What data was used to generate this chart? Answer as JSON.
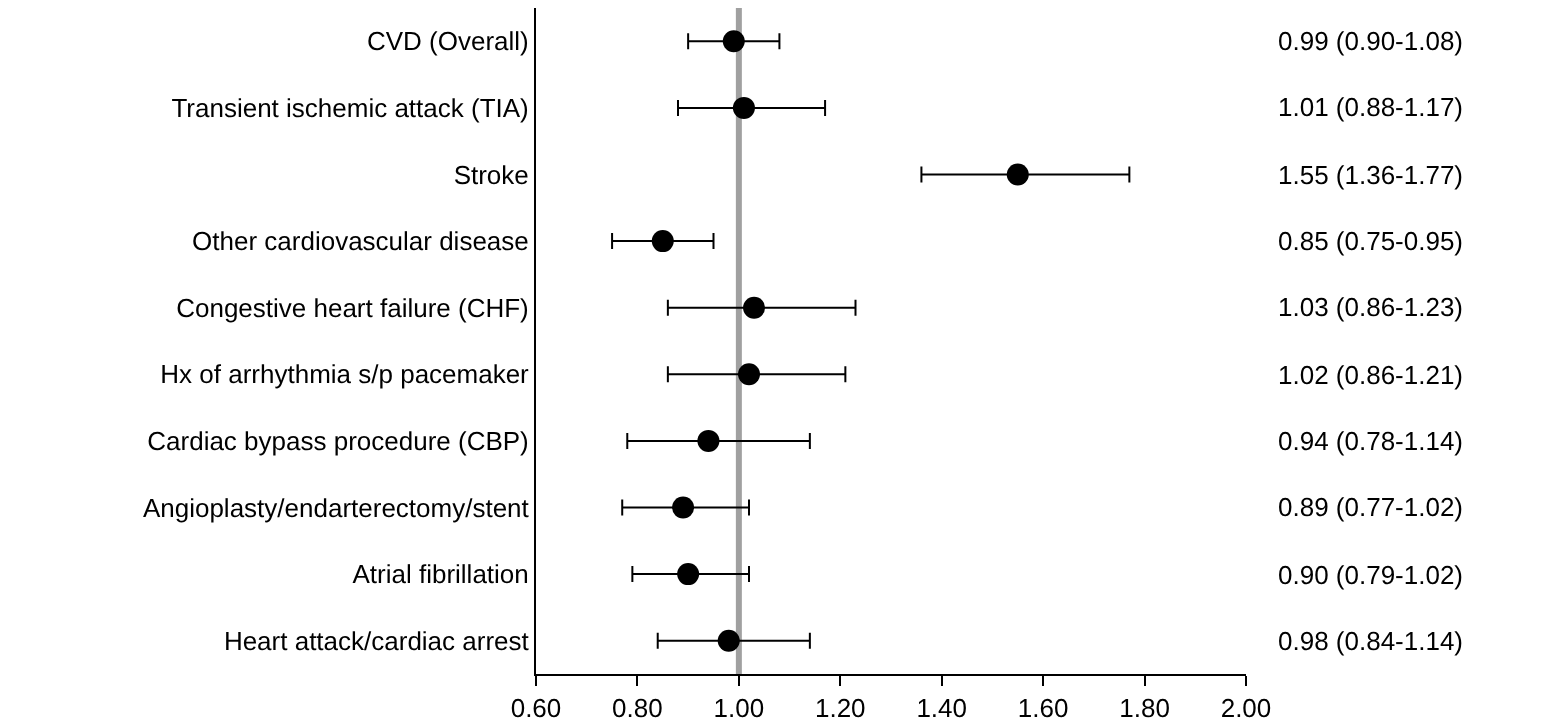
{
  "chart_data": {
    "type": "scatter",
    "orientation": "horizontal",
    "marker": "circle",
    "categories": [
      "CVD (Overall)",
      "Transient ischemic attack (TIA)",
      "Stroke",
      "Other cardiovascular disease",
      "Congestive heart failure (CHF)",
      "Hx of arrhythmia s/p pacemaker",
      "Cardiac bypass procedure (CBP)",
      "Angioplasty/endarterectomy/stent",
      "Atrial fibrillation",
      "Heart attack/cardiac arrest"
    ],
    "series": [
      {
        "color": "#000000",
        "values": [
          0.99,
          1.01,
          1.55,
          0.85,
          1.03,
          1.02,
          0.94,
          0.89,
          0.9,
          0.98
        ],
        "errors": [
          [
            0.9,
            1.08
          ],
          [
            0.88,
            1.17
          ],
          [
            1.36,
            1.77
          ],
          [
            0.75,
            0.95
          ],
          [
            0.86,
            1.23
          ],
          [
            0.86,
            1.21
          ],
          [
            0.78,
            1.14
          ],
          [
            0.77,
            1.02
          ],
          [
            0.79,
            1.02
          ],
          [
            0.84,
            1.14
          ]
        ],
        "value_labels": [
          "0.99 (0.90-1.08)",
          "1.01 (0.88-1.17)",
          "1.55 (1.36-1.77)",
          "0.85 (0.75-0.95)",
          "1.03 (0.86-1.23)",
          "1.02 (0.86-1.21)",
          "0.94 (0.78-1.14)",
          "0.89 (0.77-1.02)",
          "0.90 (0.79-1.02)",
          "0.98 (0.84-1.14)"
        ]
      }
    ],
    "xlim": [
      0.6,
      2.0
    ],
    "xticks": [
      {
        "value": 0.6,
        "label": "0.60"
      },
      {
        "value": 0.8,
        "label": "0.80"
      },
      {
        "value": 1.0,
        "label": "1.00"
      },
      {
        "value": 1.2,
        "label": "1.20"
      },
      {
        "value": 1.4,
        "label": "1.40"
      },
      {
        "value": 1.6,
        "label": "1.60"
      },
      {
        "value": 1.8,
        "label": "1.80"
      },
      {
        "value": 2.0,
        "label": "2.00"
      }
    ],
    "ref_lines": [
      {
        "axis": "x",
        "value": 1.0,
        "color": "#a0a0a0"
      }
    ]
  }
}
